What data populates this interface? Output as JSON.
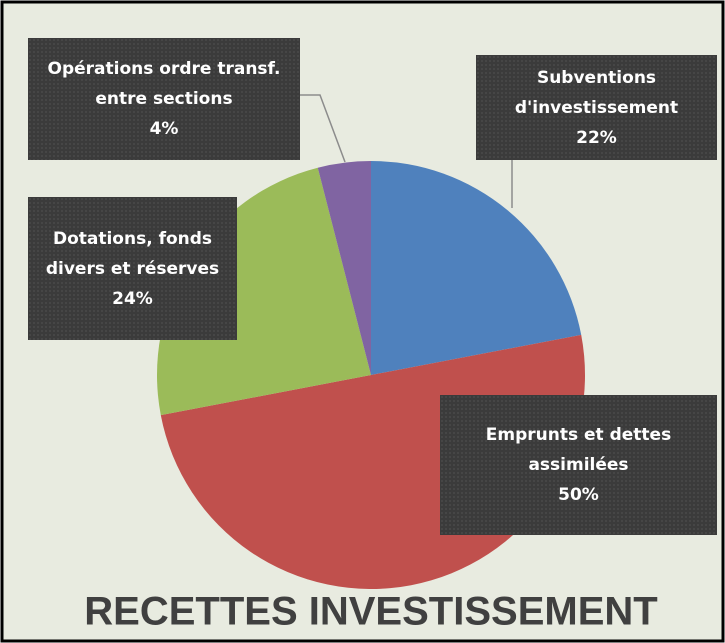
{
  "chart_data": {
    "type": "pie",
    "title": "RECETTES INVESTISSEMENT",
    "categories": [
      "Subventions d'investissement",
      "Emprunts et dettes assimilées",
      "Dotations, fonds divers et réserves",
      "Opérations ordre transf. entre sections"
    ],
    "values": [
      22,
      50,
      24,
      4
    ],
    "value_labels": [
      "22%",
      "50%",
      "24%",
      "4%"
    ],
    "colors": [
      "#4f81bd",
      "#c0504d",
      "#9bbb59",
      "#8064a2"
    ]
  }
}
